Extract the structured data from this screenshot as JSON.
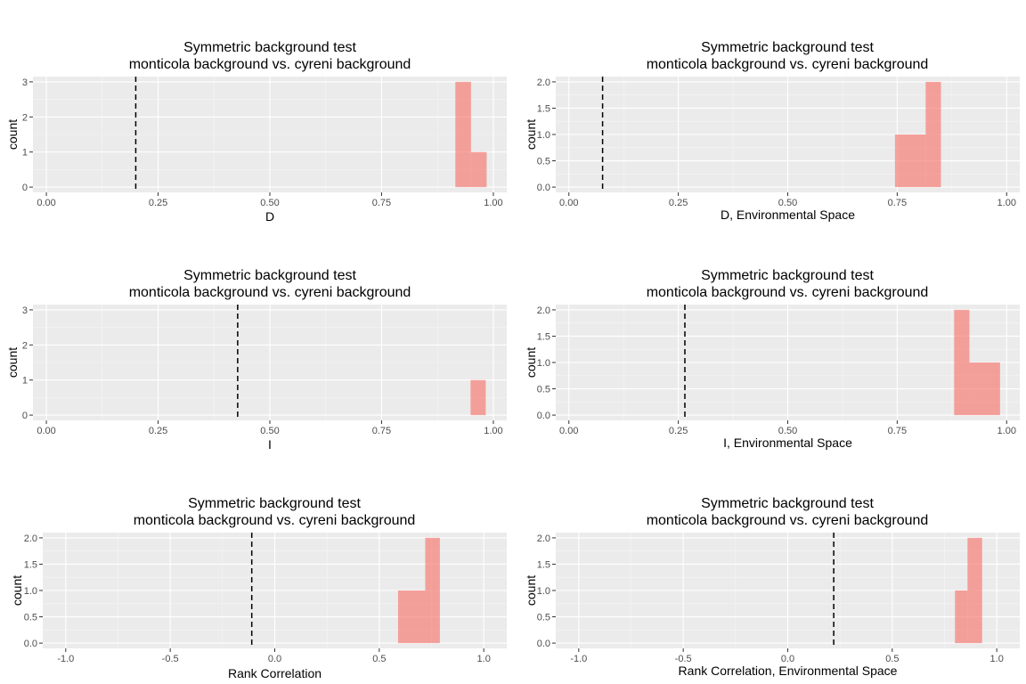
{
  "colors": {
    "panel": "#ebebeb",
    "grid_major": "#ffffff",
    "grid_minor": "#f5f5f5",
    "bar": "#f8766d",
    "tick": "#333333",
    "observed_line": "#000000"
  },
  "chart_data": [
    {
      "type": "bar",
      "title": [
        "Symmetric background test",
        "monticola background vs. cyreni background"
      ],
      "xlabel": "D",
      "ylabel": "count",
      "xlim": [
        -0.03,
        1.03
      ],
      "ylim": [
        -0.15,
        3.15
      ],
      "x_ticks": [
        0.0,
        0.25,
        0.5,
        0.75,
        1.0
      ],
      "x_tick_labels": [
        "0.00",
        "0.25",
        "0.50",
        "0.75",
        "1.00"
      ],
      "y_ticks": [
        0,
        1,
        2,
        3
      ],
      "y_tick_labels": [
        "0",
        "1",
        "2",
        "3"
      ],
      "observed": 0.2,
      "bins": [
        {
          "x0": 0.915,
          "x1": 0.95,
          "count": 3
        },
        {
          "x0": 0.95,
          "x1": 0.985,
          "count": 1
        }
      ]
    },
    {
      "type": "bar",
      "title": [
        "Symmetric background test",
        "monticola background vs. cyreni background"
      ],
      "xlabel": "D, Environmental Space",
      "ylabel": "count",
      "xlim": [
        -0.03,
        1.03
      ],
      "ylim": [
        -0.1,
        2.1
      ],
      "x_ticks": [
        0.0,
        0.25,
        0.5,
        0.75,
        1.0
      ],
      "x_tick_labels": [
        "0.00",
        "0.25",
        "0.50",
        "0.75",
        "1.00"
      ],
      "y_ticks": [
        0,
        0.5,
        1.0,
        1.5,
        2.0
      ],
      "y_tick_labels": [
        "0.0",
        "0.5",
        "1.0",
        "1.5",
        "2.0"
      ],
      "observed": 0.077,
      "bins": [
        {
          "x0": 0.745,
          "x1": 0.815,
          "count": 1
        },
        {
          "x0": 0.815,
          "x1": 0.85,
          "count": 2
        }
      ]
    },
    {
      "type": "bar",
      "title": [
        "Symmetric background test",
        "monticola background vs. cyreni background"
      ],
      "xlabel": "I",
      "ylabel": "count",
      "xlim": [
        -0.03,
        1.03
      ],
      "ylim": [
        -0.15,
        3.15
      ],
      "x_ticks": [
        0.0,
        0.25,
        0.5,
        0.75,
        1.0
      ],
      "x_tick_labels": [
        "0.00",
        "0.25",
        "0.50",
        "0.75",
        "1.00"
      ],
      "y_ticks": [
        0,
        1,
        2,
        3
      ],
      "y_tick_labels": [
        "0",
        "1",
        "2",
        "3"
      ],
      "observed": 0.428,
      "bins": [
        {
          "x0": 0.949,
          "x1": 0.983,
          "count": 1
        }
      ]
    },
    {
      "type": "bar",
      "title": [
        "Symmetric background test",
        "monticola background vs. cyreni background"
      ],
      "xlabel": "I, Environmental Space",
      "ylabel": "count",
      "xlim": [
        -0.03,
        1.03
      ],
      "ylim": [
        -0.1,
        2.1
      ],
      "x_ticks": [
        0.0,
        0.25,
        0.5,
        0.75,
        1.0
      ],
      "x_tick_labels": [
        "0.00",
        "0.25",
        "0.50",
        "0.75",
        "1.00"
      ],
      "y_ticks": [
        0,
        0.5,
        1.0,
        1.5,
        2.0
      ],
      "y_tick_labels": [
        "0.0",
        "0.5",
        "1.0",
        "1.5",
        "2.0"
      ],
      "observed": 0.265,
      "bins": [
        {
          "x0": 0.88,
          "x1": 0.915,
          "count": 2
        },
        {
          "x0": 0.915,
          "x1": 0.985,
          "count": 1
        }
      ]
    },
    {
      "type": "bar",
      "title": [
        "Symmetric background test",
        "monticola background vs. cyreni background"
      ],
      "xlabel": "Rank Correlation",
      "ylabel": "count",
      "xlim": [
        -1.11,
        1.11
      ],
      "ylim": [
        -0.1,
        2.1
      ],
      "x_ticks": [
        -1.0,
        -0.5,
        0.0,
        0.5,
        1.0
      ],
      "x_tick_labels": [
        "-1.0",
        "-0.5",
        "0.0",
        "0.5",
        "1.0"
      ],
      "y_ticks": [
        0,
        0.5,
        1.0,
        1.5,
        2.0
      ],
      "y_tick_labels": [
        "0.0",
        "0.5",
        "1.0",
        "1.5",
        "2.0"
      ],
      "observed": -0.11,
      "bins": [
        {
          "x0": 0.59,
          "x1": 0.72,
          "count": 1
        },
        {
          "x0": 0.72,
          "x1": 0.79,
          "count": 2
        }
      ]
    },
    {
      "type": "bar",
      "title": [
        "Symmetric background test",
        "monticola background vs. cyreni background"
      ],
      "xlabel": "Rank Correlation, Environmental Space",
      "ylabel": "count",
      "xlim": [
        -1.11,
        1.11
      ],
      "ylim": [
        -0.1,
        2.1
      ],
      "x_ticks": [
        -1.0,
        -0.5,
        0.0,
        0.5,
        1.0
      ],
      "x_tick_labels": [
        "-1.0",
        "-0.5",
        "0.0",
        "0.5",
        "1.0"
      ],
      "y_ticks": [
        0,
        0.5,
        1.0,
        1.5,
        2.0
      ],
      "y_tick_labels": [
        "0.0",
        "0.5",
        "1.0",
        "1.5",
        "2.0"
      ],
      "observed": 0.22,
      "bins": [
        {
          "x0": 0.8,
          "x1": 0.86,
          "count": 1
        },
        {
          "x0": 0.86,
          "x1": 0.93,
          "count": 2
        }
      ]
    }
  ]
}
